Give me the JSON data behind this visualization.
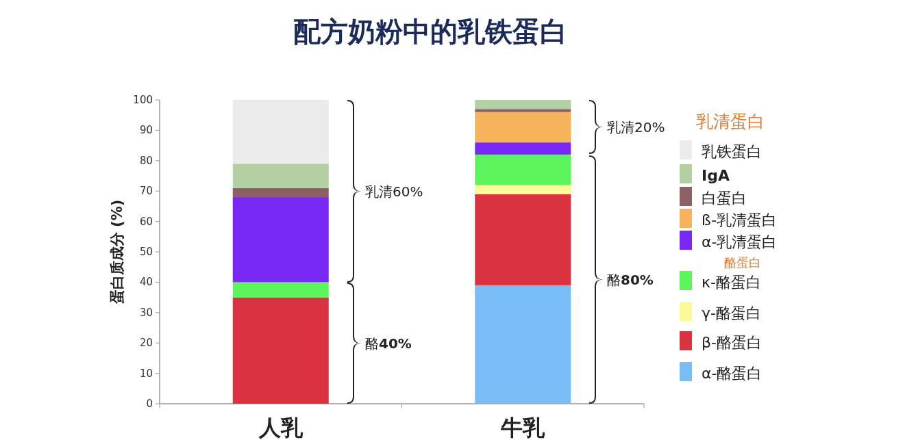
{
  "chart_data": {
    "type": "bar",
    "stacked": true,
    "title": "配方奶粉中的乳铁蛋白",
    "ylabel": "蛋白质成分 (%)",
    "legend_title": "乳清蛋白",
    "categories": [
      "人乳",
      "牛乳"
    ],
    "ylim": [
      0,
      100
    ],
    "yticks": [
      0,
      10,
      20,
      30,
      40,
      50,
      60,
      70,
      80,
      90,
      100
    ],
    "legend": "right",
    "series": [
      {
        "name": "α-酪蛋白",
        "color": "#78bdf5",
        "values": [
          0,
          39
        ]
      },
      {
        "name": "β-酪蛋白",
        "color": "#d93240",
        "values": [
          35,
          30
        ]
      },
      {
        "name": "γ-酪蛋白",
        "color": "#fafa96",
        "values": [
          0,
          3
        ]
      },
      {
        "name": "κ-酪蛋白",
        "color": "#5cf55c",
        "values": [
          5,
          10
        ]
      },
      {
        "name": "α-乳清蛋白",
        "color": "#7a28f5",
        "values": [
          28,
          4
        ]
      },
      {
        "name": "ß-乳清蛋白",
        "color": "#f7b35c",
        "values": [
          0,
          10
        ]
      },
      {
        "name": "白蛋白",
        "color": "#8f5f66",
        "values": [
          3,
          1
        ]
      },
      {
        "name": "**IgA**",
        "color": "#b2d0a2",
        "values": [
          8,
          3
        ]
      },
      {
        "name": "乳铁蛋白",
        "color": "#ebebeb",
        "values": [
          21,
          0
        ]
      }
    ],
    "annotations": [
      "酪**40%**",
      "乳清60%",
      "酪**80%**",
      "乳清20%",
      "酪蛋白"
    ]
  }
}
